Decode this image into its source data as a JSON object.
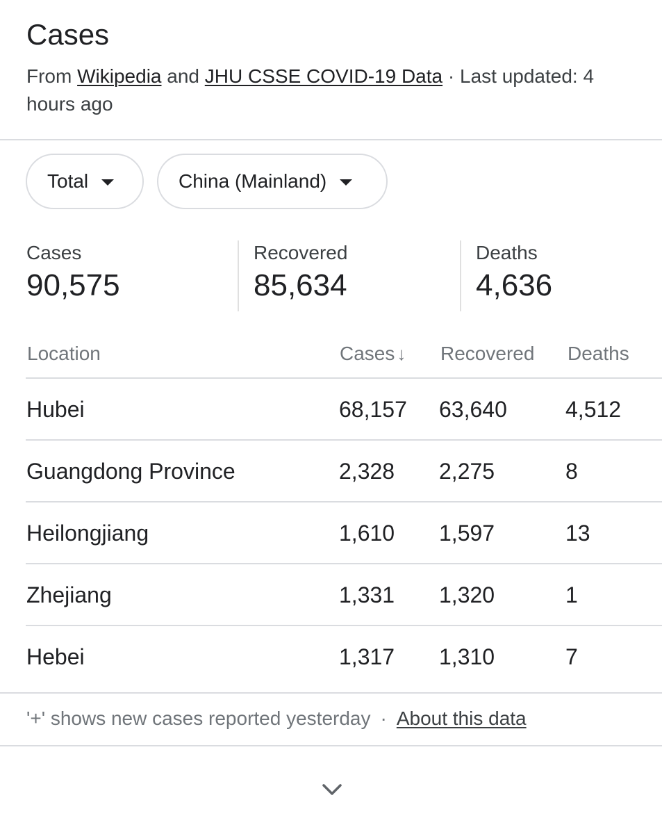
{
  "header": {
    "title": "Cases",
    "source_prefix": "From",
    "source_1": "Wikipedia",
    "source_and": "and",
    "source_2": "JHU CSSE COVID-19 Data",
    "updated": "· Last updated: 4 hours ago"
  },
  "filters": {
    "period": "Total",
    "region": "China (Mainland)"
  },
  "summary": {
    "cases_label": "Cases",
    "cases_value": "90,575",
    "recovered_label": "Recovered",
    "recovered_value": "85,634",
    "deaths_label": "Deaths",
    "deaths_value": "4,636"
  },
  "table": {
    "headers": {
      "location": "Location",
      "cases": "Cases",
      "cases_sort": "↓",
      "recovered": "Recovered",
      "deaths": "Deaths"
    },
    "rows": [
      {
        "location": "Hubei",
        "cases": "68,157",
        "recovered": "63,640",
        "deaths": "4,512"
      },
      {
        "location": "Guangdong Province",
        "cases": "2,328",
        "recovered": "2,275",
        "deaths": "8"
      },
      {
        "location": "Heilongjiang",
        "cases": "1,610",
        "recovered": "1,597",
        "deaths": "13"
      },
      {
        "location": "Zhejiang",
        "cases": "1,331",
        "recovered": "1,320",
        "deaths": "1"
      },
      {
        "location": "Hebei",
        "cases": "1,317",
        "recovered": "1,310",
        "deaths": "7"
      }
    ]
  },
  "footer": {
    "note": "'+' shows new cases reported yesterday",
    "separator": "·",
    "about_link": "About this data"
  },
  "icons": {
    "dropdown": "caret-down-icon",
    "sort": "arrow-down-icon",
    "expand": "chevron-down-icon"
  },
  "colors": {
    "text": "#202124",
    "secondary": "#70757a",
    "divider": "#dadce0"
  }
}
